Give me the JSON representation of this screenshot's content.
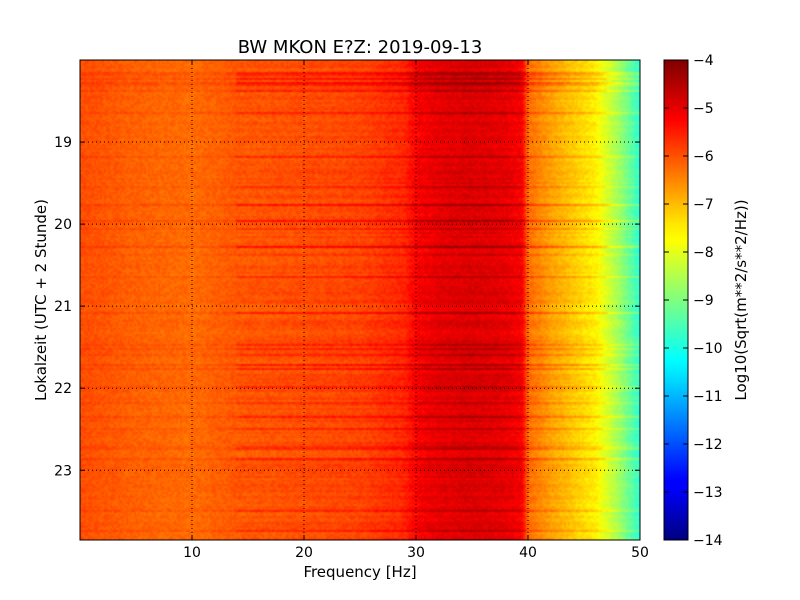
{
  "chart_data": {
    "type": "heatmap",
    "title": "BW MKON E?Z: 2019-09-13",
    "xlabel": "Frequency [Hz]",
    "ylabel": "Lokalzeit (UTC + 2 Stunde)",
    "xlim": [
      0,
      50
    ],
    "ylim": [
      18.0,
      23.85
    ],
    "y_inverted": true,
    "grid": true,
    "x_ticks": [
      10,
      20,
      30,
      40,
      50
    ],
    "x_tick_labels": [
      "10",
      "20",
      "30",
      "40",
      "50"
    ],
    "y_ticks": [
      19,
      20,
      21,
      22,
      23
    ],
    "y_tick_labels": [
      "19",
      "20",
      "21",
      "22",
      "23"
    ],
    "colorbar": {
      "label": "Log10(Sqrt(m**2/s**2/Hz))",
      "range": [
        -14,
        -4
      ],
      "ticks": [
        -4,
        -5,
        -6,
        -7,
        -8,
        -9,
        -10,
        -11,
        -12,
        -13,
        -14
      ],
      "tick_labels": [
        "−4",
        "−5",
        "−6",
        "−7",
        "−8",
        "−9",
        "−10",
        "−11",
        "−12",
        "−13",
        "−14"
      ],
      "colormap": "jet"
    },
    "frequency_profile": {
      "frequency_hz": [
        0,
        5,
        10,
        14,
        20,
        25,
        29,
        30,
        32,
        35,
        38,
        39.5,
        40,
        42,
        44,
        46,
        48,
        50
      ],
      "value": [
        -6.0,
        -6.2,
        -6.3,
        -6.1,
        -6.0,
        -5.9,
        -5.6,
        -5.2,
        -5.0,
        -4.9,
        -5.0,
        -5.2,
        -6.3,
        -6.8,
        -7.2,
        -7.6,
        -8.6,
        -9.8
      ]
    }
  }
}
